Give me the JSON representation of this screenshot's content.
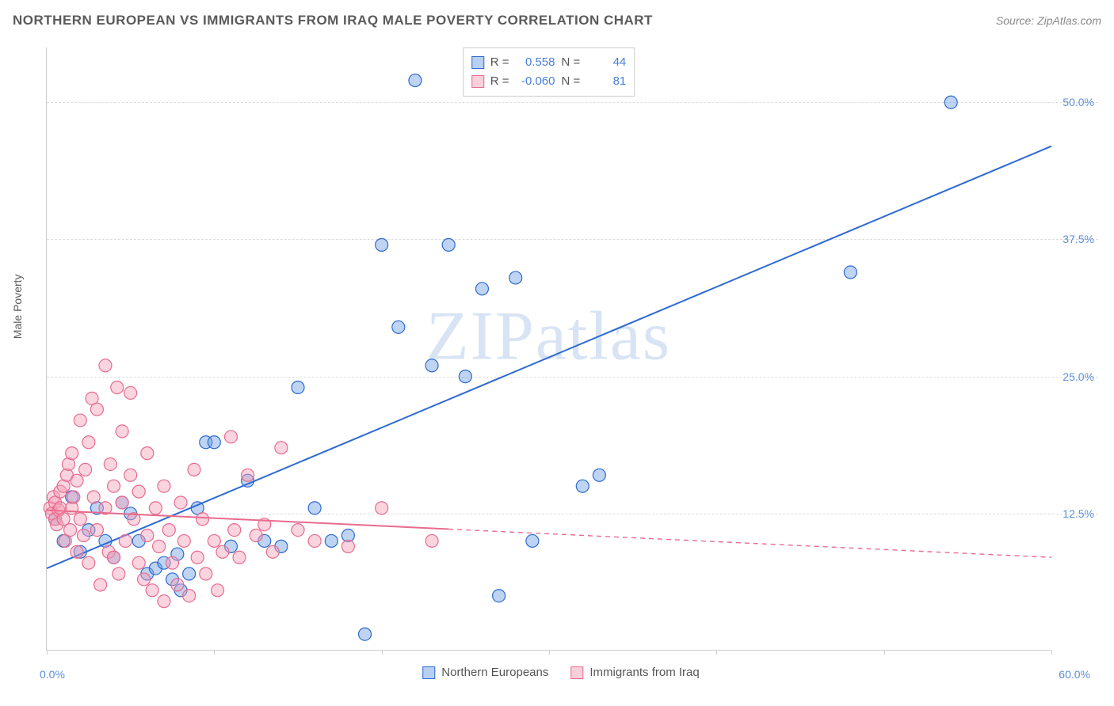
{
  "title": "NORTHERN EUROPEAN VS IMMIGRANTS FROM IRAQ MALE POVERTY CORRELATION CHART",
  "source_label": "Source: ZipAtlas.com",
  "y_axis_label": "Male Poverty",
  "watermark": "ZIPatlas",
  "chart": {
    "type": "scatter",
    "background_color": "#ffffff",
    "grid_color": "#dddddd",
    "axis_color": "#cccccc",
    "tick_label_color": "#5b8fd9",
    "xlim": [
      0,
      60
    ],
    "ylim": [
      0,
      55
    ],
    "x_origin_label": "0.0%",
    "x_max_label": "60.0%",
    "y_ticks": [
      12.5,
      25.0,
      37.5,
      50.0
    ],
    "y_tick_labels": [
      "12.5%",
      "25.0%",
      "37.5%",
      "50.0%"
    ],
    "x_tick_step": 10,
    "marker_radius": 8,
    "marker_fill_opacity": 0.45,
    "marker_stroke_width": 1.2,
    "line_width": 2,
    "series": [
      {
        "name": "Northern Europeans",
        "color": "#6fa0e2",
        "line_color": "#2e6ad1",
        "r_label": "R =",
        "r_value": "0.558",
        "n_label": "N =",
        "n_value": "44",
        "trend": {
          "x1": 0,
          "y1": 7.5,
          "x2": 60,
          "y2": 46,
          "solid_until_x": 60
        },
        "points": [
          [
            0.5,
            12
          ],
          [
            1,
            10
          ],
          [
            1.5,
            14
          ],
          [
            2,
            9
          ],
          [
            2.5,
            11
          ],
          [
            3,
            13
          ],
          [
            3.5,
            10
          ],
          [
            4,
            8.5
          ],
          [
            4.5,
            13.5
          ],
          [
            5,
            12.5
          ],
          [
            5.5,
            10
          ],
          [
            6,
            7
          ],
          [
            6.5,
            7.5
          ],
          [
            7,
            8
          ],
          [
            7.5,
            6.5
          ],
          [
            7.8,
            8.8
          ],
          [
            8,
            5.5
          ],
          [
            8.5,
            7
          ],
          [
            9,
            13
          ],
          [
            9.5,
            19
          ],
          [
            10,
            19
          ],
          [
            11,
            9.5
          ],
          [
            12,
            15.5
          ],
          [
            13,
            10
          ],
          [
            14,
            9.5
          ],
          [
            15,
            24
          ],
          [
            16,
            13
          ],
          [
            17,
            10
          ],
          [
            18,
            10.5
          ],
          [
            19,
            1.5
          ],
          [
            20,
            37
          ],
          [
            21,
            29.5
          ],
          [
            22,
            52
          ],
          [
            23,
            26
          ],
          [
            24,
            37
          ],
          [
            25,
            25
          ],
          [
            26,
            33
          ],
          [
            27,
            5
          ],
          [
            28,
            34
          ],
          [
            29,
            10
          ],
          [
            32,
            15
          ],
          [
            33,
            16
          ],
          [
            48,
            34.5
          ],
          [
            54,
            50
          ]
        ]
      },
      {
        "name": "Immigrants from Iraq",
        "color": "#f49fb6",
        "line_color": "#e86b8e",
        "r_label": "R =",
        "r_value": "-0.060",
        "n_label": "N =",
        "n_value": "81",
        "trend": {
          "x1": 0,
          "y1": 12.8,
          "x2": 60,
          "y2": 8.5,
          "solid_until_x": 24
        },
        "points": [
          [
            0.2,
            13
          ],
          [
            0.3,
            12.5
          ],
          [
            0.4,
            14
          ],
          [
            0.5,
            12
          ],
          [
            0.5,
            13.5
          ],
          [
            0.6,
            11.5
          ],
          [
            0.7,
            12.8
          ],
          [
            0.8,
            14.5
          ],
          [
            0.8,
            13
          ],
          [
            1,
            12
          ],
          [
            1,
            15
          ],
          [
            1.1,
            10
          ],
          [
            1.2,
            16
          ],
          [
            1.3,
            17
          ],
          [
            1.4,
            11
          ],
          [
            1.5,
            18
          ],
          [
            1.5,
            13
          ],
          [
            1.6,
            14
          ],
          [
            1.8,
            9
          ],
          [
            1.8,
            15.5
          ],
          [
            2,
            21
          ],
          [
            2,
            12
          ],
          [
            2.2,
            10.5
          ],
          [
            2.3,
            16.5
          ],
          [
            2.5,
            19
          ],
          [
            2.5,
            8
          ],
          [
            2.7,
            23
          ],
          [
            2.8,
            14
          ],
          [
            3,
            22
          ],
          [
            3,
            11
          ],
          [
            3.2,
            6
          ],
          [
            3.5,
            26
          ],
          [
            3.5,
            13
          ],
          [
            3.7,
            9
          ],
          [
            3.8,
            17
          ],
          [
            4,
            8.5
          ],
          [
            4,
            15
          ],
          [
            4.2,
            24
          ],
          [
            4.3,
            7
          ],
          [
            4.5,
            20
          ],
          [
            4.5,
            13.5
          ],
          [
            4.7,
            10
          ],
          [
            5,
            16
          ],
          [
            5,
            23.5
          ],
          [
            5.2,
            12
          ],
          [
            5.5,
            8
          ],
          [
            5.5,
            14.5
          ],
          [
            5.8,
            6.5
          ],
          [
            6,
            10.5
          ],
          [
            6,
            18
          ],
          [
            6.3,
            5.5
          ],
          [
            6.5,
            13
          ],
          [
            6.7,
            9.5
          ],
          [
            7,
            4.5
          ],
          [
            7,
            15
          ],
          [
            7.3,
            11
          ],
          [
            7.5,
            8
          ],
          [
            7.8,
            6
          ],
          [
            8,
            13.5
          ],
          [
            8.2,
            10
          ],
          [
            8.5,
            5
          ],
          [
            8.8,
            16.5
          ],
          [
            9,
            8.5
          ],
          [
            9.3,
            12
          ],
          [
            9.5,
            7
          ],
          [
            10,
            10
          ],
          [
            10.2,
            5.5
          ],
          [
            10.5,
            9
          ],
          [
            11,
            19.5
          ],
          [
            11.2,
            11
          ],
          [
            11.5,
            8.5
          ],
          [
            12,
            16
          ],
          [
            12.5,
            10.5
          ],
          [
            13,
            11.5
          ],
          [
            13.5,
            9
          ],
          [
            14,
            18.5
          ],
          [
            15,
            11
          ],
          [
            16,
            10
          ],
          [
            18,
            9.5
          ],
          [
            20,
            13
          ],
          [
            23,
            10
          ]
        ]
      }
    ]
  },
  "legend_bottom": [
    {
      "label": "Northern Europeans",
      "color": "#6fa0e2",
      "border": "#2e6ad1"
    },
    {
      "label": "Immigrants from Iraq",
      "color": "#f49fb6",
      "border": "#e86b8e"
    }
  ]
}
